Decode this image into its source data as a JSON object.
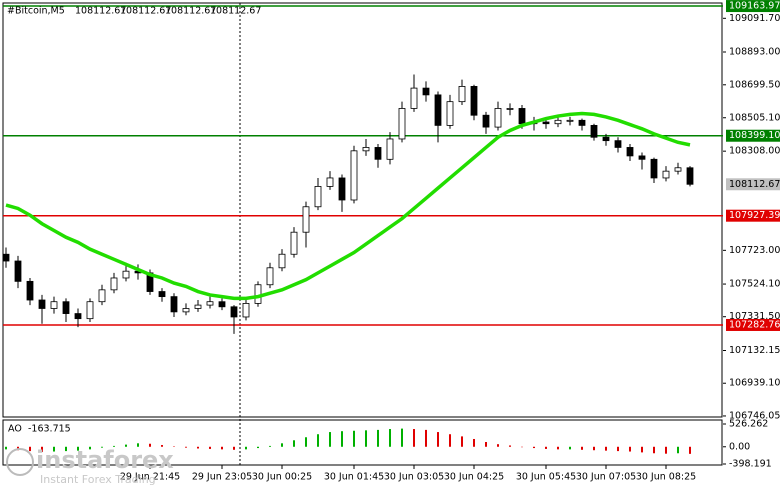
{
  "chart_data": {
    "type": "candlestick",
    "header": {
      "symbol": "#Bitcoin,M5",
      "ohlc": [
        108112.67,
        108112.67,
        108112.67,
        108112.67
      ]
    },
    "open": [
      107700,
      107660,
      107540,
      107430,
      107380,
      107420,
      107350,
      107320,
      107420,
      107490,
      107560,
      107600,
      107590,
      107480,
      107450,
      107360,
      107380,
      107400,
      107420,
      107390,
      107330,
      107410,
      107520,
      107620,
      107700,
      107830,
      107980,
      108100,
      108150,
      108020,
      108310,
      108330,
      108260,
      108380,
      108560,
      108680,
      108640,
      108460,
      108600,
      108690,
      108520,
      108450,
      108560,
      108560,
      108470,
      108480,
      108470,
      108490,
      108490,
      108460,
      108390,
      108370,
      108330,
      108280,
      108260,
      108150,
      108190,
      108210
    ],
    "high": [
      107740,
      107690,
      107560,
      107460,
      107450,
      107440,
      107380,
      107440,
      107520,
      107590,
      107650,
      107640,
      107610,
      107500,
      107470,
      107410,
      107430,
      107450,
      107440,
      107400,
      107440,
      107540,
      107650,
      107730,
      107860,
      108010,
      108150,
      108190,
      108170,
      108340,
      108380,
      108350,
      108420,
      108600,
      108760,
      108720,
      108660,
      108640,
      108730,
      108700,
      108540,
      108600,
      108590,
      108580,
      108510,
      108500,
      108510,
      108510,
      108500,
      108470,
      108410,
      108390,
      108350,
      108300,
      108270,
      108220,
      108240,
      108220
    ],
    "low": [
      107620,
      107500,
      107400,
      107290,
      107350,
      107300,
      107270,
      107300,
      107400,
      107470,
      107540,
      107550,
      107460,
      107420,
      107330,
      107340,
      107360,
      107380,
      107370,
      107230,
      107310,
      107390,
      107500,
      107600,
      107680,
      107740,
      107960,
      108080,
      107950,
      108000,
      108280,
      108210,
      108230,
      108360,
      108540,
      108600,
      108360,
      108440,
      108580,
      108490,
      108410,
      108430,
      108520,
      108440,
      108430,
      108440,
      108450,
      108460,
      108430,
      108370,
      108340,
      108300,
      108250,
      108200,
      108120,
      108130,
      108170,
      108100
    ],
    "close": [
      107660,
      107540,
      107430,
      107380,
      107420,
      107350,
      107320,
      107420,
      107490,
      107560,
      107600,
      107590,
      107480,
      107450,
      107360,
      107380,
      107400,
      107420,
      107390,
      107330,
      107410,
      107520,
      107620,
      107700,
      107830,
      107980,
      108100,
      108150,
      108020,
      108310,
      108330,
      108260,
      108380,
      108560,
      108680,
      108640,
      108460,
      108600,
      108690,
      108520,
      108450,
      108560,
      108560,
      108470,
      108480,
      108470,
      108490,
      108490,
      108460,
      108390,
      108370,
      108330,
      108280,
      108260,
      108150,
      108190,
      108210,
      108112.67
    ],
    "ma": {
      "color": "#22dd00",
      "values": [
        107990,
        107970,
        107930,
        107880,
        107840,
        107800,
        107770,
        107730,
        107700,
        107670,
        107640,
        107610,
        107580,
        107560,
        107530,
        107510,
        107480,
        107460,
        107450,
        107440,
        107440,
        107450,
        107470,
        107490,
        107520,
        107550,
        107590,
        107630,
        107670,
        107710,
        107760,
        107810,
        107860,
        107910,
        107970,
        108030,
        108090,
        108150,
        108210,
        108270,
        108330,
        108390,
        108430,
        108460,
        108480,
        108500,
        108515,
        108525,
        108530,
        108525,
        108510,
        108490,
        108465,
        108440,
        108410,
        108385,
        108360,
        108345
      ]
    },
    "bull_color": "#ffffff",
    "bear_color": "#000000",
    "ylim": [
      106734,
      109182
    ],
    "yticks": [
      {
        "value": 109091.7,
        "label": "109091.70"
      },
      {
        "value": 108893,
        "label": "108893.00"
      },
      {
        "value": 108699.5,
        "label": "108699.50"
      },
      {
        "value": 108505.1,
        "label": "108505.10"
      },
      {
        "value": 108308,
        "label": "108308.00"
      },
      {
        "value": 107723,
        "label": "107723.00"
      },
      {
        "value": 107524.1,
        "label": "107524.10"
      },
      {
        "value": 107331.5,
        "label": "107331.50"
      },
      107132.15,
      {
        "value": 106939.1,
        "label": "106939.10"
      },
      106746.05
    ],
    "levels": [
      {
        "value": 109163.97,
        "color": "#008000"
      },
      {
        "value": 108399.1,
        "label": "108399.10",
        "color": "#008000"
      },
      {
        "value": 107927.39,
        "color": "#e00000"
      },
      {
        "value": 107282.76,
        "color": "#e00000"
      }
    ],
    "current_price": 108112.67,
    "xticks": [
      {
        "value": 12,
        "label": "29 Jun 21:45"
      },
      {
        "value": 18,
        "label": "29 Jun 23:05"
      },
      {
        "value": 23,
        "label": "30 Jun 00:25"
      },
      {
        "value": 29,
        "label": "30 Jun 01:45"
      },
      {
        "value": 34,
        "label": "30 Jun 03:05"
      },
      {
        "value": 39,
        "label": "30 Jun 04:25"
      },
      {
        "value": 45,
        "label": "30 Jun 05:45"
      },
      {
        "value": 50,
        "label": "30 Jun 07:05"
      },
      {
        "value": 55,
        "label": "30 Jun 08:25"
      }
    ],
    "ao": {
      "name": "AO",
      "up_color": "#00b000",
      "down_color": "#e00000",
      "values": [
        -60,
        -80,
        -100,
        -120,
        -110,
        -100,
        -90,
        -60,
        -20,
        20,
        50,
        80,
        70,
        40,
        10,
        -20,
        -40,
        -50,
        -60,
        -70,
        -60,
        -30,
        20,
        80,
        150,
        220,
        290,
        340,
        360,
        370,
        380,
        390,
        410,
        420,
        410,
        390,
        340,
        290,
        240,
        180,
        110,
        60,
        30,
        -10,
        -30,
        -50,
        -60,
        -60,
        -70,
        -80,
        -90,
        -100,
        -110,
        -130,
        -150,
        -160,
        -150,
        -163.715
      ],
      "ylim": [
        -398.191,
        526.262
      ],
      "yticks": [
        526.262,
        {
          "value": 0,
          "label": "0.00"
        },
        -398.191
      ]
    },
    "watermark": {
      "brand": "instaforex",
      "tagline": "Instant Forex Trading"
    }
  }
}
